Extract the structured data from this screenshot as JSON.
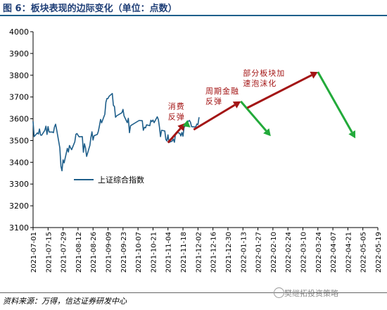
{
  "title": "图 6：板块表现的边际变化（单位：点数）",
  "source": "资料来源：万得，信达证券研发中心",
  "watermark": "樊继拓投资策略",
  "colors": {
    "line": "#1f5f8b",
    "up_arrow": "#a31515",
    "down_arrow": "#22aa3a",
    "annotation": "#a31515"
  },
  "chart_data": {
    "type": "line",
    "title": "",
    "xlabel": "",
    "ylabel": "",
    "ylim": [
      3100,
      4000
    ],
    "yticks": [
      "4000",
      "3900",
      "3800",
      "3700",
      "3600",
      "3500",
      "3400",
      "3300",
      "3200",
      "3100"
    ],
    "xticks": [
      "2021-07-01",
      "2021-07-15",
      "2021-07-29",
      "2021-08-12",
      "2021-08-26",
      "2021-09-09",
      "2021-09-23",
      "2021-10-07",
      "2021-10-21",
      "2021-11-04",
      "2021-11-18",
      "2021-12-02",
      "2021-12-16",
      "2021-12-30",
      "2022-01-13",
      "2022-01-27",
      "2022-02-10",
      "2022-02-24",
      "2022-03-10",
      "2022-03-24",
      "2022-04-07",
      "2022-04-21",
      "2022-05-05",
      "2022-05-19"
    ],
    "legend": {
      "label": "上证综合指数",
      "position": "center-left"
    },
    "series": [
      {
        "name": "上证综合指数",
        "points": [
          [
            "2021-07-01",
            3588
          ],
          [
            "2021-07-02",
            3518
          ],
          [
            "2021-07-05",
            3535
          ],
          [
            "2021-07-06",
            3530
          ],
          [
            "2021-07-07",
            3553
          ],
          [
            "2021-07-08",
            3525
          ],
          [
            "2021-07-09",
            3524
          ],
          [
            "2021-07-12",
            3547
          ],
          [
            "2021-07-13",
            3566
          ],
          [
            "2021-07-14",
            3528
          ],
          [
            "2021-07-15",
            3564
          ],
          [
            "2021-07-16",
            3539
          ],
          [
            "2021-07-19",
            3539
          ],
          [
            "2021-07-20",
            3536
          ],
          [
            "2021-07-21",
            3562
          ],
          [
            "2021-07-22",
            3575
          ],
          [
            "2021-07-23",
            3550
          ],
          [
            "2021-07-26",
            3467
          ],
          [
            "2021-07-27",
            3382
          ],
          [
            "2021-07-28",
            3361
          ],
          [
            "2021-07-29",
            3411
          ],
          [
            "2021-07-30",
            3397
          ],
          [
            "2021-08-02",
            3464
          ],
          [
            "2021-08-03",
            3447
          ],
          [
            "2021-08-04",
            3477
          ],
          [
            "2021-08-05",
            3466
          ],
          [
            "2021-08-06",
            3458
          ],
          [
            "2021-08-09",
            3494
          ],
          [
            "2021-08-10",
            3529
          ],
          [
            "2021-08-11",
            3532
          ],
          [
            "2021-08-12",
            3524
          ],
          [
            "2021-08-13",
            3517
          ],
          [
            "2021-08-16",
            3518
          ],
          [
            "2021-08-17",
            3446
          ],
          [
            "2021-08-18",
            3485
          ],
          [
            "2021-08-19",
            3465
          ],
          [
            "2021-08-20",
            3427
          ],
          [
            "2021-08-23",
            3477
          ],
          [
            "2021-08-24",
            3514
          ],
          [
            "2021-08-25",
            3540
          ],
          [
            "2021-08-26",
            3502
          ],
          [
            "2021-08-27",
            3522
          ],
          [
            "2021-08-30",
            3528
          ],
          [
            "2021-08-31",
            3543
          ],
          [
            "2021-09-01",
            3567
          ],
          [
            "2021-09-02",
            3597
          ],
          [
            "2021-09-03",
            3581
          ],
          [
            "2021-09-06",
            3621
          ],
          [
            "2021-09-07",
            3676
          ],
          [
            "2021-09-08",
            3693
          ],
          [
            "2021-09-09",
            3693
          ],
          [
            "2021-09-10",
            3703
          ],
          [
            "2021-09-13",
            3716
          ],
          [
            "2021-09-14",
            3662
          ],
          [
            "2021-09-15",
            3656
          ],
          [
            "2021-09-16",
            3607
          ],
          [
            "2021-09-17",
            3613
          ],
          [
            "2021-09-22",
            3628
          ],
          [
            "2021-09-23",
            3643
          ],
          [
            "2021-09-24",
            3613
          ],
          [
            "2021-09-27",
            3582
          ],
          [
            "2021-09-28",
            3602
          ],
          [
            "2021-09-29",
            3536
          ],
          [
            "2021-09-30",
            3568
          ],
          [
            "2021-10-08",
            3592
          ],
          [
            "2021-10-11",
            3591
          ],
          [
            "2021-10-12",
            3547
          ],
          [
            "2021-10-13",
            3561
          ],
          [
            "2021-10-14",
            3558
          ],
          [
            "2021-10-15",
            3572
          ],
          [
            "2021-10-18",
            3568
          ],
          [
            "2021-10-19",
            3593
          ],
          [
            "2021-10-20",
            3587
          ],
          [
            "2021-10-21",
            3594
          ],
          [
            "2021-10-22",
            3582
          ],
          [
            "2021-10-25",
            3609
          ],
          [
            "2021-10-26",
            3597
          ],
          [
            "2021-10-27",
            3562
          ],
          [
            "2021-10-28",
            3518
          ],
          [
            "2021-10-29",
            3547
          ],
          [
            "2021-11-01",
            3544
          ],
          [
            "2021-11-02",
            3505
          ],
          [
            "2021-11-03",
            3498
          ],
          [
            "2021-11-04",
            3526
          ],
          [
            "2021-11-05",
            3491
          ],
          [
            "2021-11-08",
            3498
          ],
          [
            "2021-11-09",
            3507
          ],
          [
            "2021-11-10",
            3492
          ],
          [
            "2021-11-11",
            3532
          ],
          [
            "2021-11-12",
            3539
          ],
          [
            "2021-11-15",
            3533
          ],
          [
            "2021-11-16",
            3521
          ],
          [
            "2021-11-17",
            3537
          ],
          [
            "2021-11-18",
            3520
          ],
          [
            "2021-11-19",
            3560
          ],
          [
            "2021-11-22",
            3582
          ],
          [
            "2021-11-23",
            3589
          ],
          [
            "2021-11-24",
            3592
          ],
          [
            "2021-11-25",
            3584
          ],
          [
            "2021-11-26",
            3564
          ],
          [
            "2021-11-29",
            3562
          ],
          [
            "2021-11-30",
            3564
          ],
          [
            "2021-12-01",
            3576
          ],
          [
            "2021-12-02",
            3573
          ],
          [
            "2021-12-03",
            3607
          ]
        ]
      }
    ],
    "annotations": [
      {
        "text": "消费",
        "x": "2021-11-04",
        "y": 3645
      },
      {
        "text": "反弹",
        "x": "2021-11-04",
        "y": 3597
      },
      {
        "text": "周期金融",
        "x": "2021-12-09",
        "y": 3715
      },
      {
        "text": "反弹",
        "x": "2021-12-09",
        "y": 3668
      },
      {
        "text": "部分板块加",
        "x": "2022-01-13",
        "y": 3797
      },
      {
        "text": "速泡沫化",
        "x": "2022-01-13",
        "y": 3750
      }
    ],
    "arrows": [
      {
        "kind": "up",
        "from": [
          "2021-11-04",
          3490
        ],
        "to": [
          "2021-11-20",
          3580
        ]
      },
      {
        "kind": "down",
        "from": [
          "2021-11-20",
          3580
        ],
        "to": [
          "2021-11-25",
          3560
        ]
      },
      {
        "kind": "up",
        "from": [
          "2021-11-28",
          3550
        ],
        "to": [
          "2022-01-11",
          3680
        ]
      },
      {
        "kind": "down",
        "from": [
          "2022-01-11",
          3680
        ],
        "to": [
          "2022-02-08",
          3520
        ]
      },
      {
        "kind": "up",
        "from": [
          "2022-01-17",
          3650
        ],
        "to": [
          "2022-03-24",
          3815
        ]
      },
      {
        "kind": "down",
        "from": [
          "2022-03-24",
          3815
        ],
        "to": [
          "2022-04-28",
          3510
        ]
      }
    ]
  }
}
